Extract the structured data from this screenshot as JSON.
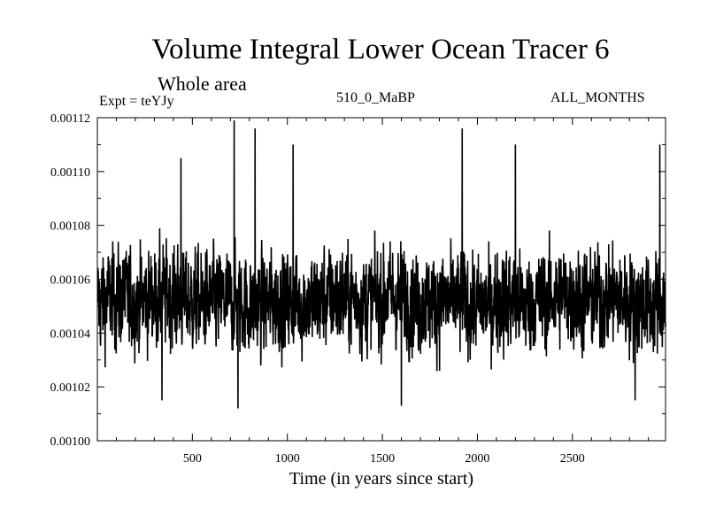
{
  "chart_data": {
    "type": "line",
    "title": "Volume Integral Lower Ocean Tracer 6",
    "subtitle": "Whole area",
    "annotations": {
      "experiment": "Expt = teYJy",
      "run": "510_0_MaBP",
      "season": "ALL_MONTHS"
    },
    "xlabel": "Time (in years since start)",
    "ylabel": "",
    "xlim": [
      0,
      2990
    ],
    "ylim": [
      0.001,
      0.00112
    ],
    "xticks": [
      500,
      1000,
      1500,
      2000,
      2500
    ],
    "xtick_labels": [
      "500",
      "1000",
      "1500",
      "2000",
      "2500"
    ],
    "yticks": [
      0.001,
      0.00102,
      0.00104,
      0.00106,
      0.00108,
      0.0011,
      0.00112
    ],
    "ytick_labels": [
      "0.00100",
      "0.00102",
      "0.00104",
      "0.00106",
      "0.00108",
      "0.00110",
      "0.00112"
    ],
    "series": [
      {
        "name": "Volume Integral Lower Ocean Tracer 6",
        "x_start": 1,
        "x_step": 1,
        "n_points": 2990,
        "mean": 0.001052,
        "typical_range": [
          0.00102,
          0.00108
        ],
        "peaks": [
          {
            "x": 440,
            "y": 0.001105
          },
          {
            "x": 720,
            "y": 0.001119
          },
          {
            "x": 830,
            "y": 0.001116
          },
          {
            "x": 1030,
            "y": 0.00111
          },
          {
            "x": 1920,
            "y": 0.001116
          },
          {
            "x": 2200,
            "y": 0.00111
          },
          {
            "x": 2960,
            "y": 0.00111
          }
        ],
        "troughs": [
          {
            "x": 340,
            "y": 0.001015
          },
          {
            "x": 740,
            "y": 0.001012
          },
          {
            "x": 1600,
            "y": 0.001013
          },
          {
            "x": 2830,
            "y": 0.001015
          }
        ]
      }
    ]
  },
  "colors": {
    "line": "#000000",
    "background": "#ffffff"
  }
}
